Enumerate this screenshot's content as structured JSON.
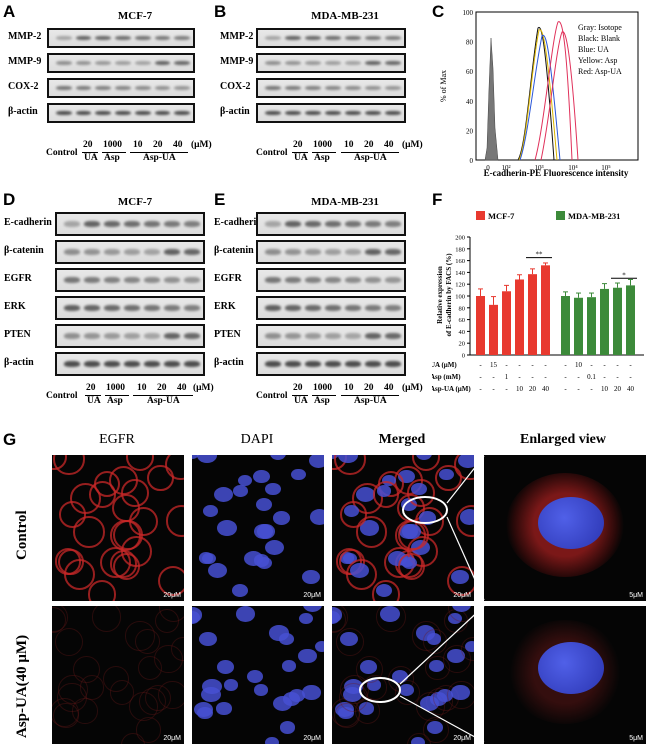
{
  "panels": {
    "A": {
      "letter": "A",
      "title": "MCF-7",
      "rows": [
        "MMP-2",
        "MMP-9",
        "COX-2",
        "β-actin"
      ]
    },
    "B": {
      "letter": "B",
      "title": "MDA-MB-231",
      "rows": [
        "MMP-2",
        "MMP-9",
        "COX-2",
        "β-actin"
      ]
    },
    "C": {
      "letter": "C",
      "ylabel": "% of Max",
      "xlabel": "E-cadherin-PE Fluorescence  intensity",
      "ticks_y": [
        "100",
        "80",
        "60",
        "40",
        "20",
        "0"
      ],
      "ticks_x": [
        "0",
        "10²",
        "10³",
        "10⁴",
        "10⁵"
      ],
      "legend": [
        "Gray: Isotope",
        "Black: Blank",
        "Blue: UA",
        "Yellow: Asp",
        "Red: Asp-UA"
      ]
    },
    "D": {
      "letter": "D",
      "title": "MCF-7",
      "rows": [
        "E-cadherin",
        "β-catenin",
        "EGFR",
        "ERK",
        "PTEN",
        "β-actin"
      ]
    },
    "E": {
      "letter": "E",
      "title": "MDA-MB-231",
      "rows": [
        "E-cadherin",
        "β-catenin",
        "EGFR",
        "ERK",
        "PTEN",
        "β-actin"
      ]
    },
    "F": {
      "letter": "F"
    },
    "G": {
      "letter": "G",
      "cols": [
        "EGFR",
        "DAPI",
        "Merged",
        "Enlarged view"
      ],
      "rows": [
        "Control",
        "Asp-UA(40 μM)"
      ],
      "scale_small": "20μM",
      "scale_large": "5μM"
    }
  },
  "lanes": {
    "control": "Control",
    "v20": "20",
    "v1000": "1000",
    "v10": "10",
    "v20b": "20",
    "v40": "40",
    "unit": "(μM)",
    "ua": "UA",
    "asp": "Asp",
    "aspua": "Asp-UA"
  },
  "chart_data": {
    "type": "bar",
    "ylabel": "Relative expression of E-cadherin by FACS (%)",
    "ylim": [
      0,
      200
    ],
    "yticks": [
      0,
      20,
      40,
      60,
      80,
      100,
      120,
      140,
      160,
      180,
      200
    ],
    "series": [
      {
        "name": "MCF-7",
        "color": "#e8392f",
        "values": [
          100,
          85,
          108,
          128,
          137,
          152
        ],
        "errors": [
          12,
          14,
          10,
          8,
          9,
          4
        ]
      },
      {
        "name": "MDA-MB-231",
        "color": "#3c8a3a",
        "values": [
          100,
          97,
          98,
          112,
          114,
          118
        ],
        "errors": [
          7,
          8,
          7,
          9,
          8,
          10
        ]
      }
    ],
    "significance": [
      {
        "series": "MCF-7",
        "label": "**"
      },
      {
        "series": "MDA-MB-231",
        "label": "*"
      }
    ],
    "treatment_table": {
      "rows": [
        {
          "label": "UA (μM)",
          "mcf": [
            "-",
            "15",
            "-",
            "-",
            "-",
            "-"
          ],
          "mda": [
            "-",
            "10",
            "-",
            "-",
            "-",
            "-"
          ]
        },
        {
          "label": "Asp (mM)",
          "mcf": [
            "-",
            "-",
            "1",
            "-",
            "-",
            "-"
          ],
          "mda": [
            "-",
            "-",
            "0.1",
            "-",
            "-",
            "-"
          ]
        },
        {
          "label": "Asp-UA (μM)",
          "mcf": [
            "-",
            "-",
            "-",
            "10",
            "20",
            "40"
          ],
          "mda": [
            "-",
            "-",
            "-",
            "10",
            "20",
            "40"
          ]
        }
      ]
    }
  }
}
